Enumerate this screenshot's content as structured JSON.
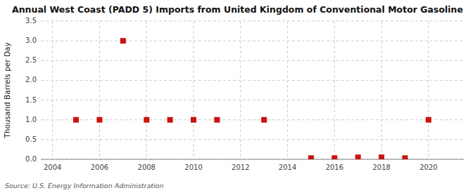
{
  "chart_data": {
    "type": "scatter",
    "title": "Annual West Coast (PADD 5) Imports from United Kingdom of Conventional Motor Gasoline",
    "ylabel": "Thousand Barrels per Day",
    "source": "Source: U.S. Energy Information Administration",
    "x": [
      2005,
      2006,
      2007,
      2008,
      2009,
      2010,
      2011,
      2013,
      2015,
      2016,
      2017,
      2018,
      2019,
      2020
    ],
    "values": [
      1.0,
      1.0,
      3.0,
      1.0,
      1.0,
      1.0,
      1.0,
      1.0,
      0.03,
      0.03,
      0.05,
      0.05,
      0.03,
      1.0
    ],
    "color": "#cc1111",
    "marker": "square",
    "xlim": [
      2003.5,
      2021.5
    ],
    "ylim": [
      0.0,
      3.5
    ],
    "xticks": [
      2004,
      2006,
      2008,
      2010,
      2012,
      2014,
      2016,
      2018,
      2020
    ],
    "yticks": [
      {
        "value": 0.0,
        "label": "0.0"
      },
      0.5,
      {
        "value": 1.0,
        "label": "1.0"
      },
      1.5,
      {
        "value": 2.0,
        "label": "2.0"
      },
      2.5,
      {
        "value": 3.0,
        "label": "3.0"
      },
      3.5
    ],
    "grid": true
  }
}
